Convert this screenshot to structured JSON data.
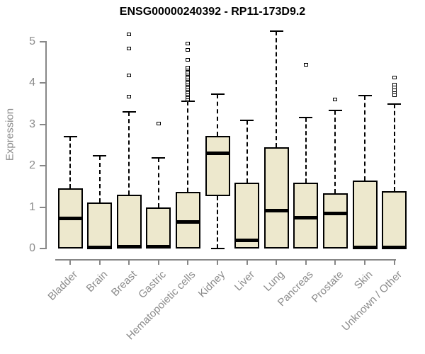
{
  "chart_data": {
    "type": "boxplot",
    "title": "ENSG00000240392 - RP11-173D9.2",
    "ylabel": "Expression",
    "xlabel": "",
    "ylim": [
      0,
      5.3
    ],
    "yticks": [
      0,
      1,
      2,
      3,
      4,
      5
    ],
    "grid": false,
    "legend": "none",
    "categories": [
      "Bladder",
      "Brain",
      "Breast",
      "Gastric",
      "Hematopoietic cells",
      "Kidney",
      "Liver",
      "Lung",
      "Pancreas",
      "Prostate",
      "Skin",
      "Unknown / Other"
    ],
    "series": [
      {
        "name": "Bladder",
        "whisker_low": 0,
        "q1": 0,
        "median": 0.72,
        "q3": 1.45,
        "whisker_high": 2.7,
        "outliers": []
      },
      {
        "name": "Brain",
        "whisker_low": 0,
        "q1": 0,
        "median": 0.03,
        "q3": 1.12,
        "whisker_high": 2.25,
        "outliers": []
      },
      {
        "name": "Breast",
        "whisker_low": 0,
        "q1": 0,
        "median": 0.04,
        "q3": 1.3,
        "whisker_high": 3.3,
        "outliers": [
          3.68,
          4.19,
          4.84,
          5.18
        ]
      },
      {
        "name": "Gastric",
        "whisker_low": 0,
        "q1": 0,
        "median": 0.04,
        "q3": 1.0,
        "whisker_high": 2.2,
        "outliers": [
          3.03
        ]
      },
      {
        "name": "Hematopoietic cells",
        "whisker_low": 0,
        "q1": 0,
        "median": 0.65,
        "q3": 1.37,
        "whisker_high": 3.56,
        "outliers": [
          3.58,
          3.62,
          3.66,
          3.7,
          3.74,
          3.78,
          3.82,
          3.86,
          3.9,
          3.94,
          3.98,
          4.02,
          4.06,
          4.1,
          4.14,
          4.18,
          4.22,
          4.26,
          4.3,
          4.34,
          4.38,
          4.57,
          4.81,
          4.95
        ]
      },
      {
        "name": "Kidney",
        "whisker_low": 0,
        "q1": 1.27,
        "median": 2.3,
        "q3": 2.73,
        "whisker_high": 3.73,
        "outliers": []
      },
      {
        "name": "Liver",
        "whisker_low": 0,
        "q1": 0,
        "median": 0.2,
        "q3": 1.6,
        "whisker_high": 3.1,
        "outliers": []
      },
      {
        "name": "Lung",
        "whisker_low": 0,
        "q1": 0,
        "median": 0.92,
        "q3": 2.45,
        "whisker_high": 5.25,
        "outliers": []
      },
      {
        "name": "Pancreas",
        "whisker_low": 0,
        "q1": 0,
        "median": 0.75,
        "q3": 1.59,
        "whisker_high": 3.17,
        "outliers": [
          4.45
        ]
      },
      {
        "name": "Prostate",
        "whisker_low": 0,
        "q1": 0,
        "median": 0.84,
        "q3": 1.33,
        "whisker_high": 3.34,
        "outliers": [
          3.61
        ]
      },
      {
        "name": "Skin",
        "whisker_low": 0,
        "q1": 0,
        "median": 0.03,
        "q3": 1.64,
        "whisker_high": 3.7,
        "outliers": []
      },
      {
        "name": "Unknown / Other",
        "whisker_low": 0,
        "q1": 0,
        "median": 0.03,
        "q3": 1.39,
        "whisker_high": 3.5,
        "outliers": [
          3.7,
          3.77,
          3.83,
          3.89,
          3.96,
          4.14
        ]
      }
    ],
    "colors": {
      "box_fill": "#EDE8CD",
      "box_stroke": "#000000",
      "median": "#000000",
      "axis": "#878787",
      "label_text": "#8B8B8B",
      "title_text": "#000000",
      "background": "#FFFFFF"
    }
  }
}
